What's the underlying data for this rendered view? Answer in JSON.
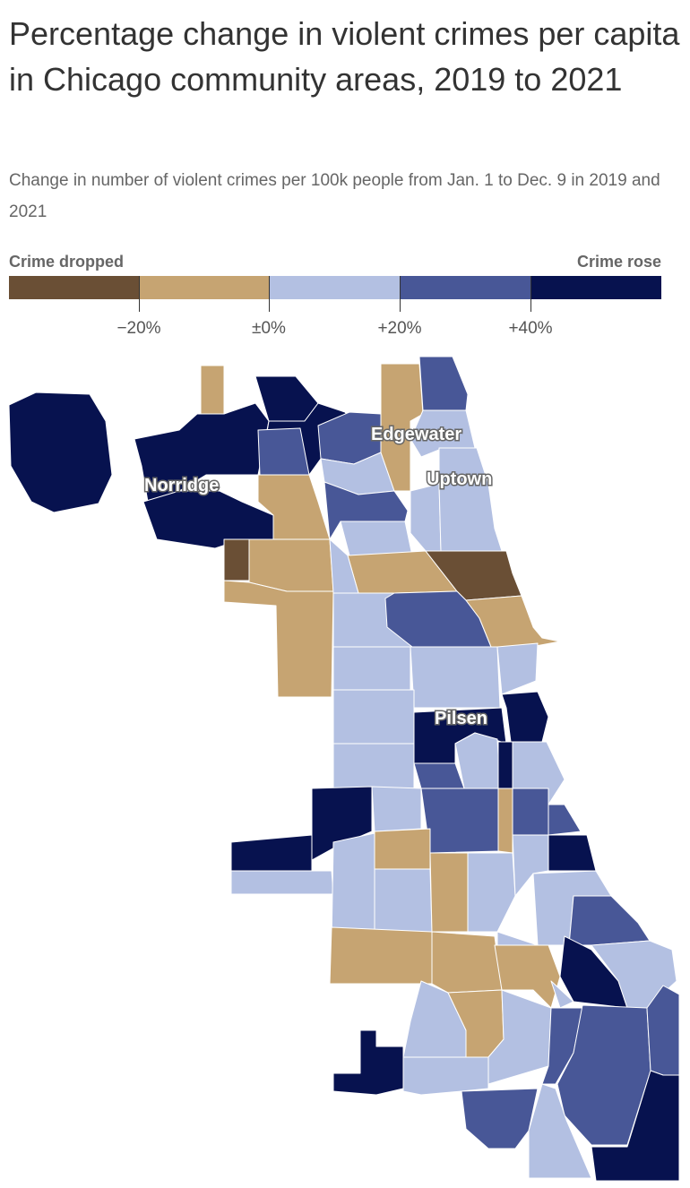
{
  "title": "Percentage change in violent crimes per capita in Chicago community areas, 2019 to 2021",
  "subtitle": "Change in number of violent crimes per 100k people from Jan. 1 to Dec. 9 in 2019 and 2021",
  "legend": {
    "left_label": "Crime dropped",
    "right_label": "Crime rose",
    "ticks": [
      "−20%",
      "±0%",
      "+20%",
      "+40%"
    ],
    "colors": [
      "#6a4f35",
      "#c6a472",
      "#b3c0e2",
      "#485797",
      "#07124f"
    ]
  },
  "map_labels": {
    "edgewater": "Edgewater",
    "uptown": "Uptown",
    "norridge": "Norridge",
    "pilsen": "Pilsen"
  }
}
